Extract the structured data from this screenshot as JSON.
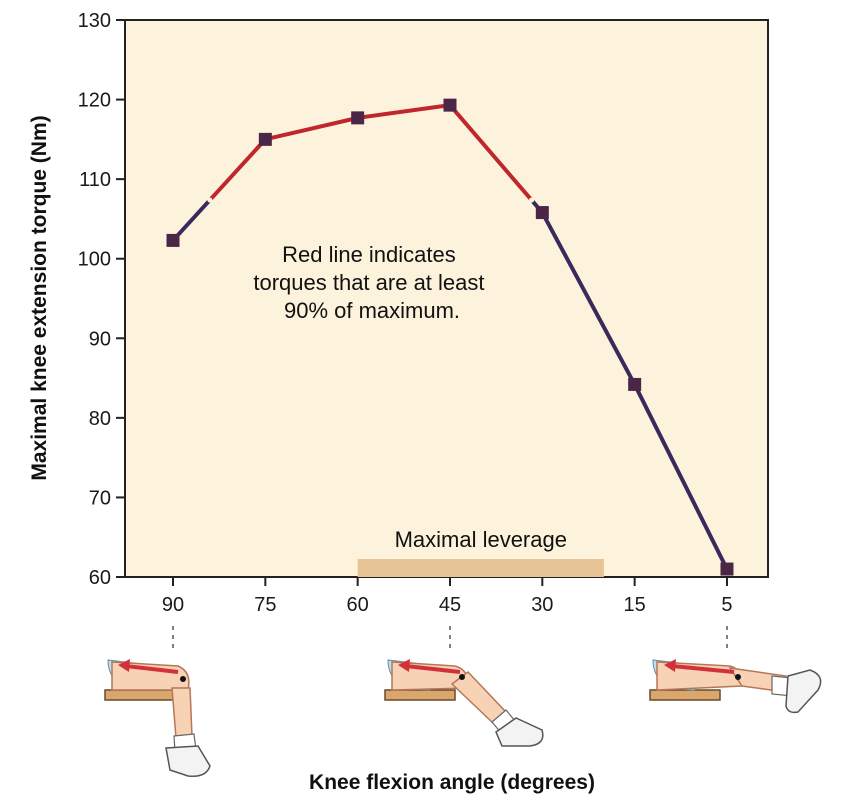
{
  "chart_data": {
    "type": "line",
    "xlabel": "Knee flexion angle (degrees)",
    "ylabel": "Maximal knee extension torque (Nm)",
    "categories": [
      "90",
      "75",
      "60",
      "45",
      "30",
      "15",
      "5"
    ],
    "x": [
      90,
      75,
      60,
      45,
      30,
      15,
      5
    ],
    "yticks": [
      60,
      70,
      80,
      90,
      100,
      110,
      120,
      130
    ],
    "ylim": [
      60,
      130
    ],
    "grid": false,
    "series": [
      {
        "values": [
          102.3,
          115.0,
          117.7,
          119.3,
          105.8,
          84.2,
          61.0
        ]
      }
    ],
    "highlight_threshold": 90,
    "annotation": [
      "Red line indicates",
      "torques that are at least",
      "90% of maximum."
    ],
    "leverage_band": {
      "label": "Maximal leverage",
      "from": 60,
      "to": 20
    },
    "colors": {
      "high_segment": "#c0272d",
      "low_segment": "#3a2a5c",
      "marker": "#4b2747",
      "plot_background": "#fdf3dc",
      "leverage_band": "#e7c495"
    },
    "leg_illustrations": [
      "leg-at-90-degrees",
      "leg-at-45-degrees",
      "leg-at-5-degrees"
    ]
  }
}
